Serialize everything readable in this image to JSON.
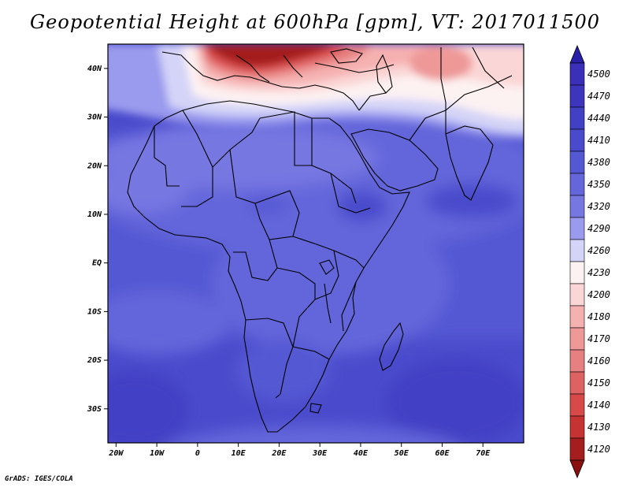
{
  "title": "Geopotential Height at 600hPa [gpm], VT: 2017011500",
  "footer": "GrADS: IGES/COLA",
  "map": {
    "lon_range": [
      -22,
      80
    ],
    "lat_range": [
      -37,
      45
    ],
    "lon_ticks": [
      {
        "value": -20,
        "label": "20W"
      },
      {
        "value": -10,
        "label": "10W"
      },
      {
        "value": 0,
        "label": "0"
      },
      {
        "value": 10,
        "label": "10E"
      },
      {
        "value": 20,
        "label": "20E"
      },
      {
        "value": 30,
        "label": "30E"
      },
      {
        "value": 40,
        "label": "40E"
      },
      {
        "value": 50,
        "label": "50E"
      },
      {
        "value": 60,
        "label": "60E"
      },
      {
        "value": 70,
        "label": "70E"
      }
    ],
    "lat_ticks": [
      {
        "value": 40,
        "label": "40N"
      },
      {
        "value": 30,
        "label": "30N"
      },
      {
        "value": 20,
        "label": "20N"
      },
      {
        "value": 10,
        "label": "10N"
      },
      {
        "value": 0,
        "label": "EQ"
      },
      {
        "value": -10,
        "label": "10S"
      },
      {
        "value": -20,
        "label": "20S"
      },
      {
        "value": -30,
        "label": "30S"
      }
    ]
  },
  "colorbar": {
    "levels": [
      {
        "label": "4500",
        "color": "#3a2fb8"
      },
      {
        "label": "4470",
        "color": "#3d35bc"
      },
      {
        "label": "4440",
        "color": "#4240c4"
      },
      {
        "label": "4410",
        "color": "#4a4bcc"
      },
      {
        "label": "4380",
        "color": "#5558d3"
      },
      {
        "label": "4350",
        "color": "#6466da"
      },
      {
        "label": "4320",
        "color": "#7777e2"
      },
      {
        "label": "4290",
        "color": "#9a9aee"
      },
      {
        "label": "4260",
        "color": "#d4d4f8"
      },
      {
        "label": "4230",
        "color": "#fdf2f2"
      },
      {
        "label": "4200",
        "color": "#fbd6d6"
      },
      {
        "label": "4180",
        "color": "#f5b0b0"
      },
      {
        "label": "4170",
        "color": "#ee9898"
      },
      {
        "label": "4160",
        "color": "#e78080"
      },
      {
        "label": "4150",
        "color": "#df6262"
      },
      {
        "label": "4140",
        "color": "#d84a4a"
      },
      {
        "label": "4130",
        "color": "#c63333"
      },
      {
        "label": "4120",
        "color": "#a41e1e"
      }
    ],
    "top_arrow_color": "#2a1fa8",
    "bottom_arrow_color": "#8a1010"
  }
}
